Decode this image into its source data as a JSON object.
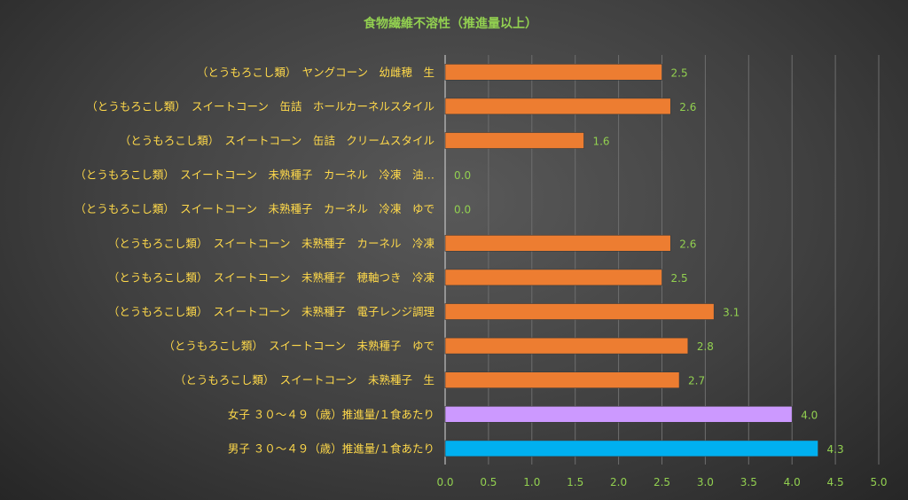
{
  "chart_data": {
    "type": "bar",
    "orientation": "horizontal",
    "title": "食物繊維不溶性（推進量以上）",
    "xlabel": "",
    "ylabel": "",
    "xlim": [
      0,
      5.0
    ],
    "x_ticks": [
      "0.0",
      "0.5",
      "1.0",
      "1.5",
      "2.0",
      "2.5",
      "3.0",
      "3.5",
      "4.0",
      "4.5",
      "5.0"
    ],
    "grid": true,
    "legend": "none",
    "bars": [
      {
        "label": "（とうもろこし類）　ヤングコーン　幼雌穂　生",
        "value": 2.5,
        "value_label": "2.5",
        "color": "#ed7d31"
      },
      {
        "label": "（とうもろこし類）　スイートコーン　缶詰　ホールカーネルスタイル",
        "value": 2.6,
        "value_label": "2.6",
        "color": "#ed7d31"
      },
      {
        "label": "（とうもろこし類）　スイートコーン　缶詰　クリームスタイル",
        "value": 1.6,
        "value_label": "1.6",
        "color": "#ed7d31"
      },
      {
        "label": "（とうもろこし類）　スイートコーン　未熟種子　カーネル　冷凍　油…",
        "value": 0.0,
        "value_label": "0.0",
        "color": "#ed7d31"
      },
      {
        "label": "（とうもろこし類）　スイートコーン　未熟種子　カーネル　冷凍　ゆで",
        "value": 0.0,
        "value_label": "0.0",
        "color": "#ed7d31"
      },
      {
        "label": "（とうもろこし類）　スイートコーン　未熟種子　カーネル　冷凍",
        "value": 2.6,
        "value_label": "2.6",
        "color": "#ed7d31"
      },
      {
        "label": "（とうもろこし類）　スイートコーン　未熟種子　穂軸つき　冷凍",
        "value": 2.5,
        "value_label": "2.5",
        "color": "#ed7d31"
      },
      {
        "label": "（とうもろこし類）　スイートコーン　未熟種子　電子レンジ調理",
        "value": 3.1,
        "value_label": "3.1",
        "color": "#ed7d31"
      },
      {
        "label": "（とうもろこし類）　スイートコーン　未熟種子　ゆで",
        "value": 2.8,
        "value_label": "2.8",
        "color": "#ed7d31"
      },
      {
        "label": "（とうもろこし類）　スイートコーン　未熟種子　生",
        "value": 2.7,
        "value_label": "2.7",
        "color": "#ed7d31"
      },
      {
        "label": "女子 ３０～４９（歳）推進量/１食あたり",
        "value": 4.0,
        "value_label": "4.0",
        "color": "#cc99ff"
      },
      {
        "label": "男子 ３０～４９（歳）推進量/１食あたり",
        "value": 4.3,
        "value_label": "4.3",
        "color": "#00b0f0"
      }
    ]
  }
}
